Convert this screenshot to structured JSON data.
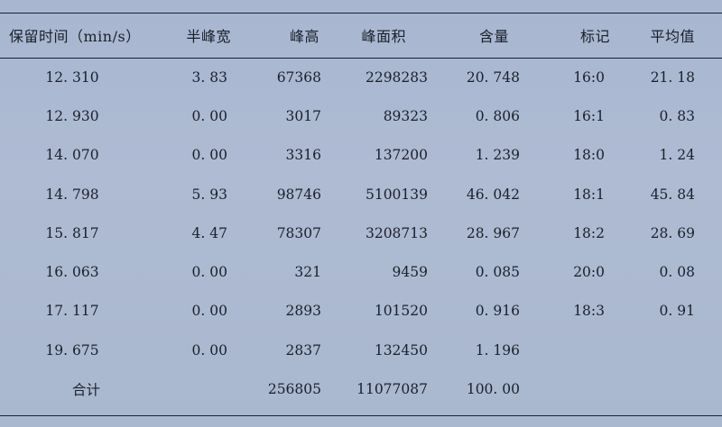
{
  "table": {
    "headers": [
      "保留时间（min/s）",
      "半峰宽",
      "峰高",
      "峰面积",
      "含量",
      "标记",
      "平均值"
    ],
    "rows": [
      [
        "12. 310",
        "3. 83",
        "67368",
        "2298283",
        "20. 748",
        "16:0",
        "21. 18"
      ],
      [
        "12. 930",
        "0. 00",
        "3017",
        "89323",
        "0. 806",
        "16:1",
        "0. 83"
      ],
      [
        "14. 070",
        "0. 00",
        "3316",
        "137200",
        "1. 239",
        "18:0",
        "1. 24"
      ],
      [
        "14. 798",
        "5. 93",
        "98746",
        "5100139",
        "46. 042",
        "18:1",
        "45. 84"
      ],
      [
        "15. 817",
        "4. 47",
        "78307",
        "3208713",
        "28. 967",
        "18:2",
        "28. 69"
      ],
      [
        "16. 063",
        "0. 00",
        "321",
        "9459",
        "0. 085",
        "20:0",
        "0. 08"
      ],
      [
        "17. 117",
        "0. 00",
        "2893",
        "101520",
        "0. 916",
        "18:3",
        "0. 91"
      ],
      [
        "19. 675",
        "0. 00",
        "2837",
        "132450",
        "1. 196",
        "",
        ""
      ]
    ],
    "total": {
      "label": "合计",
      "peak_height": "256805",
      "peak_area": "11077087",
      "content": "100. 00"
    }
  }
}
